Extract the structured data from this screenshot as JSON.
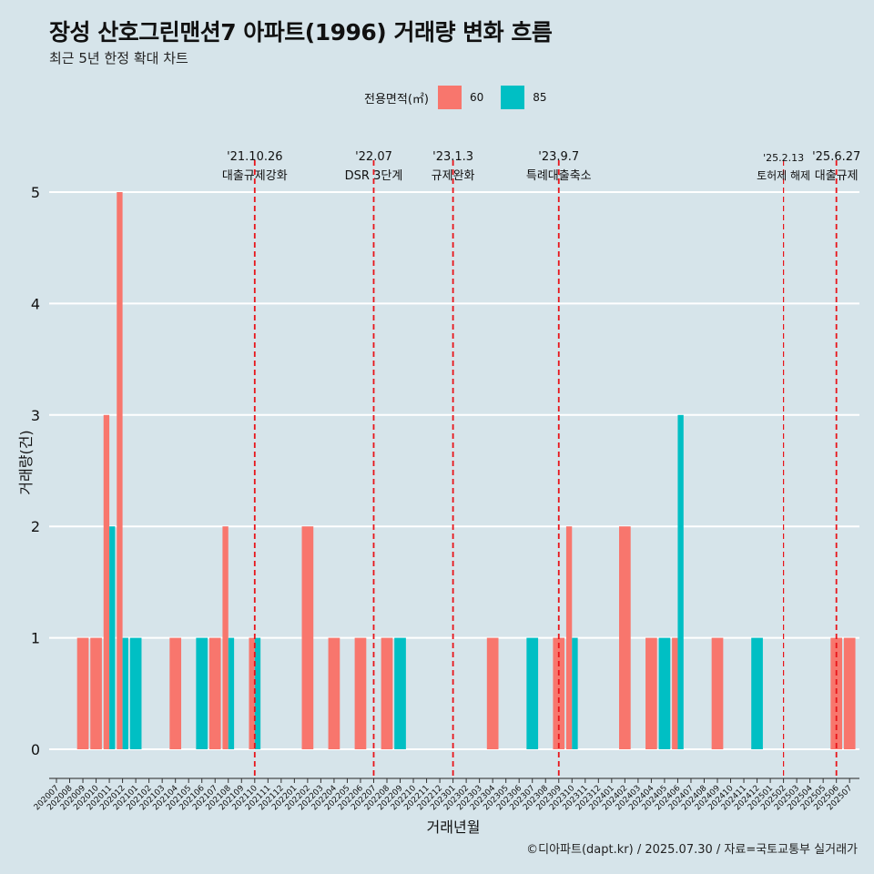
{
  "header": {
    "title": "장성 산호그린맨션7 아파트(1996) 거래량 변화 흐름",
    "subtitle": "최근 5년 한정 확대 차트"
  },
  "legend": {
    "title": "전용면적(㎡)",
    "items": [
      {
        "label": "60",
        "color": "#F8766D"
      },
      {
        "label": "85",
        "color": "#00BFC4"
      }
    ]
  },
  "caption": "©디아파트(dapt.kr) / 2025.07.30 / 자료=국토교통부 실거래가",
  "chart_data": {
    "type": "bar",
    "xlabel": "거래년월",
    "ylabel": "거래량(건)",
    "ylim": [
      0,
      5
    ],
    "yticks": [
      0,
      1,
      2,
      3,
      4,
      5
    ],
    "grid": true,
    "legend_position": "top",
    "categories": [
      "202007",
      "202008",
      "202009",
      "202010",
      "202011",
      "202012",
      "202101",
      "202102",
      "202103",
      "202104",
      "202105",
      "202106",
      "202107",
      "202108",
      "202109",
      "202110",
      "202111",
      "202112",
      "202201",
      "202202",
      "202203",
      "202204",
      "202205",
      "202206",
      "202207",
      "202208",
      "202209",
      "202210",
      "202211",
      "202212",
      "202301",
      "202302",
      "202303",
      "202304",
      "202305",
      "202306",
      "202307",
      "202308",
      "202309",
      "202310",
      "202311",
      "202312",
      "202401",
      "202402",
      "202403",
      "202404",
      "202405",
      "202406",
      "202407",
      "202408",
      "202409",
      "202410",
      "202411",
      "202412",
      "202501",
      "202502",
      "202503",
      "202504",
      "202505",
      "202506",
      "202507"
    ],
    "series": [
      {
        "name": "60",
        "color": "#F8766D",
        "values": [
          0,
          0,
          1,
          1,
          3,
          5,
          0,
          0,
          0,
          1,
          0,
          0,
          1,
          2,
          0,
          1,
          0,
          0,
          0,
          2,
          0,
          1,
          0,
          1,
          0,
          1,
          0,
          0,
          0,
          0,
          0,
          0,
          0,
          1,
          0,
          0,
          0,
          0,
          1,
          2,
          0,
          0,
          0,
          2,
          0,
          1,
          0,
          1,
          0,
          0,
          1,
          0,
          0,
          0,
          0,
          0,
          0,
          0,
          0,
          1,
          1
        ]
      },
      {
        "name": "85",
        "color": "#00BFC4",
        "values": [
          0,
          0,
          0,
          0,
          2,
          1,
          1,
          0,
          0,
          0,
          0,
          1,
          0,
          1,
          0,
          1,
          0,
          0,
          0,
          0,
          0,
          0,
          0,
          0,
          0,
          0,
          1,
          0,
          0,
          0,
          0,
          0,
          0,
          0,
          0,
          0,
          1,
          0,
          0,
          1,
          0,
          0,
          0,
          0,
          0,
          0,
          1,
          3,
          0,
          0,
          0,
          0,
          0,
          1,
          0,
          0,
          0,
          0,
          0,
          0,
          0
        ]
      }
    ],
    "annotations": [
      {
        "date": "'21.10.26",
        "label": "대출규제강화",
        "x": "202110"
      },
      {
        "date": "'22.07",
        "label": "DSR 3단계",
        "x": "202207"
      },
      {
        "date": "'23.1.3",
        "label": "규제완화",
        "x": "202301"
      },
      {
        "date": "'23.9.7",
        "label": "특례대출축소",
        "x": "202309"
      },
      {
        "date": "'25.2.13",
        "label": "토허제 해제",
        "x": "202502"
      },
      {
        "date": "'25.6.27",
        "label": "대출규제",
        "x": "202506"
      }
    ]
  }
}
